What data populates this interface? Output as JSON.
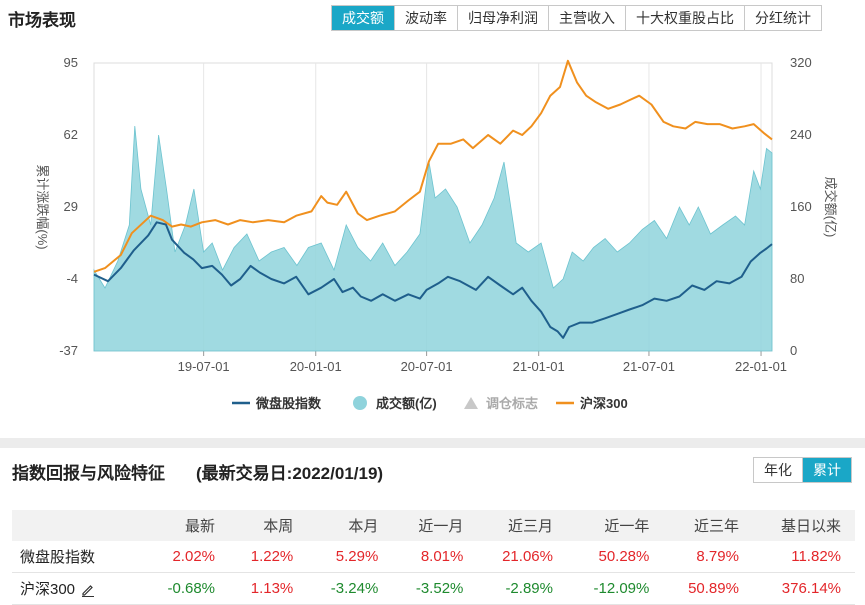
{
  "header": {
    "title": "市场表现",
    "tabs": [
      {
        "label": "成交额",
        "active": true
      },
      {
        "label": "波动率",
        "active": false
      },
      {
        "label": "归母净利润",
        "active": false
      },
      {
        "label": "主营收入",
        "active": false
      },
      {
        "label": "十大权重股占比",
        "active": false
      },
      {
        "label": "分红统计",
        "active": false
      }
    ]
  },
  "colors": {
    "accent": "#1aa7c7",
    "index_line": "#1f5f8c",
    "volume_fill": "#8fd3dc",
    "hs300_line": "#f0901e",
    "positive": "#e3262a",
    "negative": "#1e8a2e"
  },
  "chart_data": {
    "type": "line",
    "ylabel": "累计涨跌幅(%)",
    "ylabel_right": "成交额(亿)",
    "ylim": [
      -37,
      95
    ],
    "yticks": [
      "95",
      "62",
      "29",
      "-4",
      "-37"
    ],
    "ylim_right": [
      0,
      320
    ],
    "yticks_right": [
      "320",
      "240",
      "160",
      "80",
      "0"
    ],
    "xlim": [
      "2019-01-02",
      "2022-01-19"
    ],
    "xticks": [
      "19-07-01",
      "20-01-01",
      "20-07-01",
      "21-01-01",
      "21-07-01",
      "22-01-01"
    ],
    "legend": [
      "微盘股指数",
      "成交额(亿)",
      "调仓标志",
      "沪深300"
    ],
    "legend_position": "bottom",
    "grid": "vertical",
    "series": [
      {
        "name": "微盘股指数",
        "axis": "left",
        "points": [
          [
            "2019-01-02",
            -2
          ],
          [
            "2019-01-25",
            -5
          ],
          [
            "2019-02-15",
            1
          ],
          [
            "2019-03-08",
            9
          ],
          [
            "2019-04-01",
            16
          ],
          [
            "2019-04-15",
            22
          ],
          [
            "2019-04-30",
            21
          ],
          [
            "2019-05-10",
            14
          ],
          [
            "2019-05-30",
            8
          ],
          [
            "2019-06-14",
            5
          ],
          [
            "2019-06-28",
            1
          ],
          [
            "2019-07-15",
            2
          ],
          [
            "2019-07-31",
            -2
          ],
          [
            "2019-08-15",
            -7
          ],
          [
            "2019-08-30",
            -4
          ],
          [
            "2019-09-16",
            2
          ],
          [
            "2019-10-01",
            -1
          ],
          [
            "2019-10-20",
            -4
          ],
          [
            "2019-11-10",
            -6
          ],
          [
            "2019-11-30",
            -3
          ],
          [
            "2019-12-20",
            -11
          ],
          [
            "2020-01-10",
            -8
          ],
          [
            "2020-01-31",
            -4
          ],
          [
            "2020-02-14",
            -10
          ],
          [
            "2020-03-02",
            -8
          ],
          [
            "2020-03-15",
            -12
          ],
          [
            "2020-04-01",
            -14
          ],
          [
            "2020-04-20",
            -11
          ],
          [
            "2020-05-10",
            -14
          ],
          [
            "2020-06-01",
            -11
          ],
          [
            "2020-06-20",
            -13
          ],
          [
            "2020-07-01",
            -9
          ],
          [
            "2020-07-20",
            -6
          ],
          [
            "2020-08-05",
            -3
          ],
          [
            "2020-08-25",
            -5
          ],
          [
            "2020-09-20",
            -9
          ],
          [
            "2020-10-10",
            -3
          ],
          [
            "2020-10-30",
            -7
          ],
          [
            "2020-11-20",
            -11
          ],
          [
            "2020-12-05",
            -8
          ],
          [
            "2020-12-20",
            -14
          ],
          [
            "2021-01-05",
            -19
          ],
          [
            "2021-01-20",
            -26
          ],
          [
            "2021-02-01",
            -28
          ],
          [
            "2021-02-10",
            -31
          ],
          [
            "2021-02-20",
            -26
          ],
          [
            "2021-03-10",
            -24
          ],
          [
            "2021-03-30",
            -24
          ],
          [
            "2021-04-20",
            -22
          ],
          [
            "2021-05-10",
            -20
          ],
          [
            "2021-05-30",
            -18
          ],
          [
            "2021-06-20",
            -16
          ],
          [
            "2021-07-10",
            -13
          ],
          [
            "2021-07-30",
            -14
          ],
          [
            "2021-08-20",
            -12
          ],
          [
            "2021-09-10",
            -7
          ],
          [
            "2021-09-30",
            -9
          ],
          [
            "2021-10-20",
            -5
          ],
          [
            "2021-11-10",
            -6
          ],
          [
            "2021-11-30",
            -3
          ],
          [
            "2021-12-15",
            4
          ],
          [
            "2021-12-31",
            8
          ],
          [
            "2022-01-10",
            10
          ],
          [
            "2022-01-19",
            12
          ]
        ]
      },
      {
        "name": "成交额(亿)",
        "axis": "right",
        "points": [
          [
            "2019-01-02",
            90
          ],
          [
            "2019-01-20",
            70
          ],
          [
            "2019-02-10",
            100
          ],
          [
            "2019-03-01",
            140
          ],
          [
            "2019-03-10",
            250
          ],
          [
            "2019-03-20",
            180
          ],
          [
            "2019-04-05",
            140
          ],
          [
            "2019-04-18",
            240
          ],
          [
            "2019-05-01",
            180
          ],
          [
            "2019-05-15",
            110
          ],
          [
            "2019-06-01",
            140
          ],
          [
            "2019-06-15",
            180
          ],
          [
            "2019-07-01",
            110
          ],
          [
            "2019-07-15",
            120
          ],
          [
            "2019-08-01",
            90
          ],
          [
            "2019-08-20",
            115
          ],
          [
            "2019-09-10",
            130
          ],
          [
            "2019-09-30",
            100
          ],
          [
            "2019-10-20",
            110
          ],
          [
            "2019-11-10",
            115
          ],
          [
            "2019-12-01",
            95
          ],
          [
            "2019-12-20",
            115
          ],
          [
            "2020-01-10",
            120
          ],
          [
            "2020-01-31",
            90
          ],
          [
            "2020-02-20",
            140
          ],
          [
            "2020-03-10",
            115
          ],
          [
            "2020-03-31",
            100
          ],
          [
            "2020-04-20",
            120
          ],
          [
            "2020-05-10",
            95
          ],
          [
            "2020-05-30",
            110
          ],
          [
            "2020-06-20",
            130
          ],
          [
            "2020-07-05",
            210
          ],
          [
            "2020-07-15",
            170
          ],
          [
            "2020-08-01",
            180
          ],
          [
            "2020-08-20",
            160
          ],
          [
            "2020-09-10",
            120
          ],
          [
            "2020-09-30",
            140
          ],
          [
            "2020-10-20",
            170
          ],
          [
            "2020-11-05",
            210
          ],
          [
            "2020-11-25",
            120
          ],
          [
            "2020-12-15",
            110
          ],
          [
            "2021-01-05",
            120
          ],
          [
            "2021-01-25",
            70
          ],
          [
            "2021-02-10",
            80
          ],
          [
            "2021-02-25",
            110
          ],
          [
            "2021-03-15",
            100
          ],
          [
            "2021-04-01",
            115
          ],
          [
            "2021-04-20",
            125
          ],
          [
            "2021-05-10",
            110
          ],
          [
            "2021-05-30",
            120
          ],
          [
            "2021-06-20",
            135
          ],
          [
            "2021-07-10",
            145
          ],
          [
            "2021-07-30",
            125
          ],
          [
            "2021-08-20",
            160
          ],
          [
            "2021-09-05",
            140
          ],
          [
            "2021-09-20",
            160
          ],
          [
            "2021-10-10",
            130
          ],
          [
            "2021-10-30",
            140
          ],
          [
            "2021-11-20",
            150
          ],
          [
            "2021-12-05",
            140
          ],
          [
            "2021-12-20",
            200
          ],
          [
            "2021-12-31",
            180
          ],
          [
            "2022-01-10",
            225
          ],
          [
            "2022-01-19",
            220
          ]
        ]
      },
      {
        "name": "沪深300",
        "axis": "left",
        "points": [
          [
            "2019-01-02",
            -0.7
          ],
          [
            "2019-01-20",
            1
          ],
          [
            "2019-02-15",
            7
          ],
          [
            "2019-03-05",
            17
          ],
          [
            "2019-04-05",
            25
          ],
          [
            "2019-04-25",
            23
          ],
          [
            "2019-05-10",
            20
          ],
          [
            "2019-05-25",
            21
          ],
          [
            "2019-06-10",
            20
          ],
          [
            "2019-06-28",
            22
          ],
          [
            "2019-07-20",
            23
          ],
          [
            "2019-08-10",
            21
          ],
          [
            "2019-08-30",
            23
          ],
          [
            "2019-09-20",
            22
          ],
          [
            "2019-10-15",
            23
          ],
          [
            "2019-11-10",
            22
          ],
          [
            "2019-11-30",
            25
          ],
          [
            "2019-12-25",
            27
          ],
          [
            "2020-01-10",
            34
          ],
          [
            "2020-01-20",
            31
          ],
          [
            "2020-02-05",
            30
          ],
          [
            "2020-02-20",
            36
          ],
          [
            "2020-03-10",
            26
          ],
          [
            "2020-03-25",
            23
          ],
          [
            "2020-04-15",
            25
          ],
          [
            "2020-05-10",
            27
          ],
          [
            "2020-06-01",
            32
          ],
          [
            "2020-06-20",
            36
          ],
          [
            "2020-07-05",
            50
          ],
          [
            "2020-07-20",
            58
          ],
          [
            "2020-08-10",
            58
          ],
          [
            "2020-08-30",
            60
          ],
          [
            "2020-09-15",
            56
          ],
          [
            "2020-10-10",
            62
          ],
          [
            "2020-10-30",
            58
          ],
          [
            "2020-11-20",
            64
          ],
          [
            "2020-12-05",
            62
          ],
          [
            "2020-12-20",
            66
          ],
          [
            "2021-01-05",
            72
          ],
          [
            "2021-01-20",
            80
          ],
          [
            "2021-02-05",
            84
          ],
          [
            "2021-02-18",
            96
          ],
          [
            "2021-03-05",
            86
          ],
          [
            "2021-03-20",
            80
          ],
          [
            "2021-04-05",
            77
          ],
          [
            "2021-04-25",
            74
          ],
          [
            "2021-05-15",
            76
          ],
          [
            "2021-05-30",
            78
          ],
          [
            "2021-06-15",
            80
          ],
          [
            "2021-07-05",
            76
          ],
          [
            "2021-07-25",
            68
          ],
          [
            "2021-08-10",
            66
          ],
          [
            "2021-08-30",
            65
          ],
          [
            "2021-09-15",
            68
          ],
          [
            "2021-10-05",
            67
          ],
          [
            "2021-10-25",
            67
          ],
          [
            "2021-11-15",
            65
          ],
          [
            "2021-12-05",
            66
          ],
          [
            "2021-12-20",
            67
          ],
          [
            "2022-01-05",
            63
          ],
          [
            "2022-01-19",
            60
          ]
        ]
      }
    ]
  },
  "returns_section": {
    "title": "指数回报与风险特征",
    "latest_date_label": "(最新交易日:2022/01/19)",
    "toggle": [
      {
        "label": "年化",
        "active": false
      },
      {
        "label": "累计",
        "active": true
      }
    ],
    "columns": [
      "",
      "最新",
      "本周",
      "本月",
      "近一月",
      "近三月",
      "近一年",
      "近三年",
      "基日以来"
    ],
    "rows": [
      {
        "name": "微盘股指数",
        "values": [
          "2.02%",
          "1.22%",
          "5.29%",
          "8.01%",
          "21.06%",
          "50.28%",
          "8.79%",
          "11.82%"
        ]
      },
      {
        "name": "沪深300",
        "values": [
          "-0.68%",
          "1.13%",
          "-3.24%",
          "-3.52%",
          "-2.89%",
          "-12.09%",
          "50.89%",
          "376.14%"
        ]
      }
    ]
  }
}
